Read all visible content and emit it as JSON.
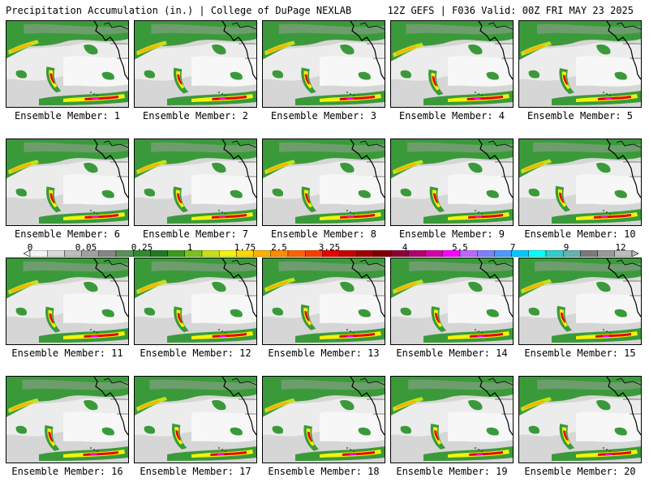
{
  "header": {
    "left": "Precipitation Accumulation (in.) | College of DuPage NEXLAB",
    "right": "12Z GEFS | F036 Valid: 00Z FRI MAY 23 2025"
  },
  "panels": [
    {
      "label": "Ensemble Member: 1"
    },
    {
      "label": "Ensemble Member: 2"
    },
    {
      "label": "Ensemble Member: 3"
    },
    {
      "label": "Ensemble Member: 4"
    },
    {
      "label": "Ensemble Member: 5"
    },
    {
      "label": "Ensemble Member: 6"
    },
    {
      "label": "Ensemble Member: 7"
    },
    {
      "label": "Ensemble Member: 8"
    },
    {
      "label": "Ensemble Member: 9"
    },
    {
      "label": "Ensemble Member: 10"
    },
    {
      "label": "Ensemble Member: 11"
    },
    {
      "label": "Ensemble Member: 12"
    },
    {
      "label": "Ensemble Member: 13"
    },
    {
      "label": "Ensemble Member: 14"
    },
    {
      "label": "Ensemble Member: 15"
    },
    {
      "label": "Ensemble Member: 16"
    },
    {
      "label": "Ensemble Member: 17"
    },
    {
      "label": "Ensemble Member: 18"
    },
    {
      "label": "Ensemble Member: 19"
    },
    {
      "label": "Ensemble Member: 20"
    }
  ],
  "colorbar": {
    "tick_labels": [
      "0",
      "0.05",
      "0.25",
      "1",
      "1.75",
      "2.5",
      "3.25",
      "4",
      "5.5",
      "7",
      "9",
      "12"
    ],
    "colors": [
      "#f5f5f5",
      "#d9d9d9",
      "#bdbdbd",
      "#a1a1a1",
      "#868686",
      "#5b8f5b",
      "#2e8b2e",
      "#1f7a1f",
      "#3c9a1c",
      "#7cc21d",
      "#c8e01a",
      "#f2f20c",
      "#ffd700",
      "#ffb000",
      "#ff8c00",
      "#ff6400",
      "#ff3c00",
      "#e60000",
      "#c80000",
      "#a00000",
      "#800000",
      "#8b0033",
      "#b0006e",
      "#d400a8",
      "#ff00ff",
      "#c066ff",
      "#8080ff",
      "#4a9cff",
      "#00c8ff",
      "#00ffff",
      "#33cccc",
      "#66b3b3",
      "#7a7a7a",
      "#9a9a9a",
      "#bcbcbc"
    ]
  }
}
